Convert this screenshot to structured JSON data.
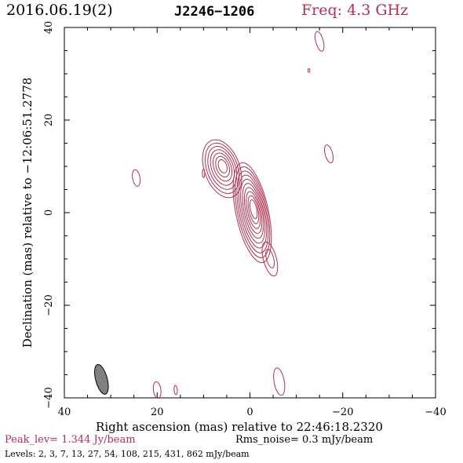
{
  "header": {
    "date": "2016.06.19(2)",
    "source": "J2246−1206",
    "frequency": "Freq: 4.3 GHz"
  },
  "footer": {
    "peak": "Peak_lev=  1.344 Jy/beam",
    "rms": "Rms_noise=  0.3 mJy/beam",
    "levels": "Levels:  2,   3,   7,  13,  27,  54, 108, 215, 431, 862 mJy/beam"
  },
  "colors": {
    "contour": "#b03050",
    "beam": "#808080",
    "frame": "#000000"
  },
  "chart_data": {
    "type": "contour",
    "title": "J2246−1206",
    "xlabel": "Right ascension (mas) relative to 22:46:18.2320",
    "ylabel": "Declination (mas) relative to −12:06:51.2778",
    "xlim": [
      40,
      -40
    ],
    "ylim": [
      -40,
      40
    ],
    "x_ticks": [
      40,
      20,
      0,
      -20,
      -40
    ],
    "x_tick_labels": [
      "40",
      "20",
      "0",
      "−20",
      "−40"
    ],
    "y_ticks": [
      -40,
      -20,
      0,
      20,
      40
    ],
    "y_tick_labels": [
      "−40",
      "−20",
      "0",
      "20",
      "40"
    ],
    "grid": false,
    "contour_levels_mJy": [
      2,
      3,
      7,
      13,
      27,
      54,
      108,
      215,
      431,
      862
    ],
    "peak_Jy_per_beam": 1.344,
    "rms_noise_mJy_per_beam": 0.3,
    "components": [
      {
        "name": "core",
        "x": -0.5,
        "y": 0,
        "rings": 10,
        "rx": 3.5,
        "ry": 11,
        "pa": -12
      },
      {
        "name": "jet-knot",
        "x": 6,
        "y": 9.5,
        "rings": 7,
        "rx": 3.8,
        "ry": 6.5,
        "pa": -20
      },
      {
        "name": "south-blob",
        "x": -4.3,
        "y": -10,
        "rings": 2,
        "rx": 1.4,
        "ry": 3.8,
        "pa": -15
      },
      {
        "name": "blob-east",
        "x": 24.5,
        "y": 7.5,
        "rings": 1,
        "rx": 0.8,
        "ry": 1.8,
        "pa": -10
      },
      {
        "name": "blob-north",
        "x": -15,
        "y": 37,
        "rings": 1,
        "rx": 0.8,
        "ry": 2.2,
        "pa": -15
      },
      {
        "name": "blob-ne",
        "x": -17,
        "y": 12.7,
        "rings": 1,
        "rx": 0.8,
        "ry": 2.0,
        "pa": -15
      },
      {
        "name": "blob-nw",
        "x": -12.7,
        "y": 30.7,
        "rings": 1,
        "rx": 0.2,
        "ry": 0.4,
        "pa": 0
      },
      {
        "name": "blob-center",
        "x": 10,
        "y": 8.5,
        "rings": 1,
        "rx": 0.25,
        "ry": 0.9,
        "pa": 0
      },
      {
        "name": "blob-bottom-center",
        "x": -6.3,
        "y": -36.5,
        "rings": 1,
        "rx": 1.1,
        "ry": 3.0,
        "pa": -10
      },
      {
        "name": "blob-bottom-a",
        "x": 20,
        "y": -38.3,
        "rings": 1,
        "rx": 0.8,
        "ry": 1.8,
        "pa": -8
      },
      {
        "name": "blob-bottom-b",
        "x": 16,
        "y": -38.3,
        "rings": 1,
        "rx": 0.35,
        "ry": 1.0,
        "pa": -5
      }
    ],
    "beam": {
      "x": 32,
      "y": -36,
      "major": 3.3,
      "minor": 1.25,
      "pa": -15
    }
  }
}
